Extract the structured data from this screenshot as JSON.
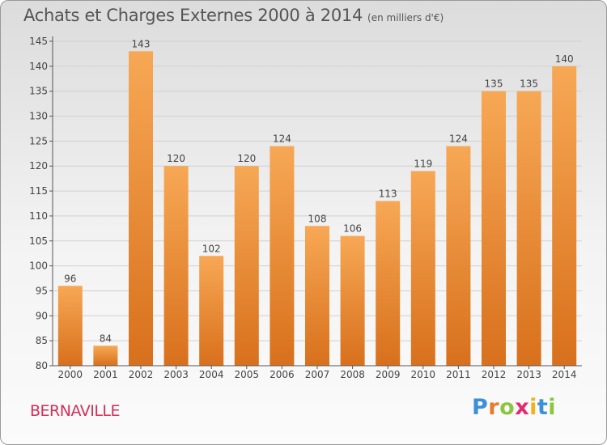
{
  "title": "Achats et Charges Externes 2000 à 2014",
  "unit_note": "(en milliers d'€)",
  "town": "BERNAVILLE",
  "brand": "Proxiti",
  "brand_colors": [
    "#3d8fd6",
    "#e87a2b",
    "#8cc63f",
    "#e52a6f",
    "#f2b21b",
    "#3d8fd6",
    "#8cc63f"
  ],
  "colors": {
    "bar_top": "#f7a855",
    "bar_bottom": "#d8701c",
    "axis": "#555555",
    "grid": "#d0d0d0",
    "town": "#d0305a"
  },
  "chart_data": {
    "type": "bar",
    "title": "Achats et Charges Externes 2000 à 2014",
    "subtitle": "(en milliers d'€)",
    "categories": [
      "2000",
      "2001",
      "2002",
      "2003",
      "2004",
      "2005",
      "2006",
      "2007",
      "2008",
      "2009",
      "2010",
      "2011",
      "2012",
      "2013",
      "2014"
    ],
    "values": [
      96,
      84,
      143,
      120,
      102,
      120,
      124,
      108,
      106,
      113,
      119,
      124,
      135,
      135,
      140
    ],
    "data_labels": [
      "96",
      "84",
      "143",
      "120",
      "102",
      "120",
      "124",
      "108",
      "106",
      "113",
      "119",
      "124",
      "135",
      "135",
      "140"
    ],
    "ylim": [
      80,
      145
    ],
    "yticks": [
      80,
      85,
      90,
      95,
      100,
      105,
      110,
      115,
      120,
      125,
      130,
      135,
      140,
      145
    ],
    "grid": true,
    "xlabel": "",
    "ylabel": ""
  }
}
